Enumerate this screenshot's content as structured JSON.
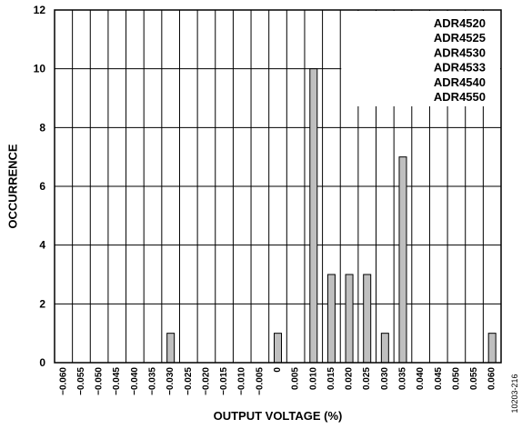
{
  "chart_data": {
    "type": "bar",
    "categories": [
      "−0.060",
      "−0.055",
      "−0.050",
      "−0.045",
      "−0.040",
      "−0.035",
      "−0.030",
      "−0.025",
      "−0.020",
      "−0.015",
      "−0.010",
      "−0.005",
      "0",
      "0.005",
      "0.010",
      "0.015",
      "0.020",
      "0.025",
      "0.030",
      "0.035",
      "0.040",
      "0.045",
      "0.050",
      "0.055",
      "0.060"
    ],
    "values": [
      0,
      0,
      0,
      0,
      0,
      0,
      1,
      0,
      0,
      0,
      0,
      0,
      1,
      0,
      10,
      3,
      3,
      3,
      1,
      7,
      0,
      0,
      0,
      0,
      1
    ],
    "xlabel": "OUTPUT VOLTAGE (%)",
    "ylabel": "OCCURRENCE",
    "ylim": [
      0,
      12
    ],
    "yticks": [
      "0",
      "2",
      "4",
      "6",
      "8",
      "10",
      "12"
    ],
    "grid": true,
    "bar_color": "#bfbfbf",
    "legend_placement": "top-right",
    "legend_entries": [
      "ADR4520",
      "ADR4525",
      "ADR4530",
      "ADR4533",
      "ADR4540",
      "ADR4550"
    ]
  },
  "figure_code": "10203-216"
}
